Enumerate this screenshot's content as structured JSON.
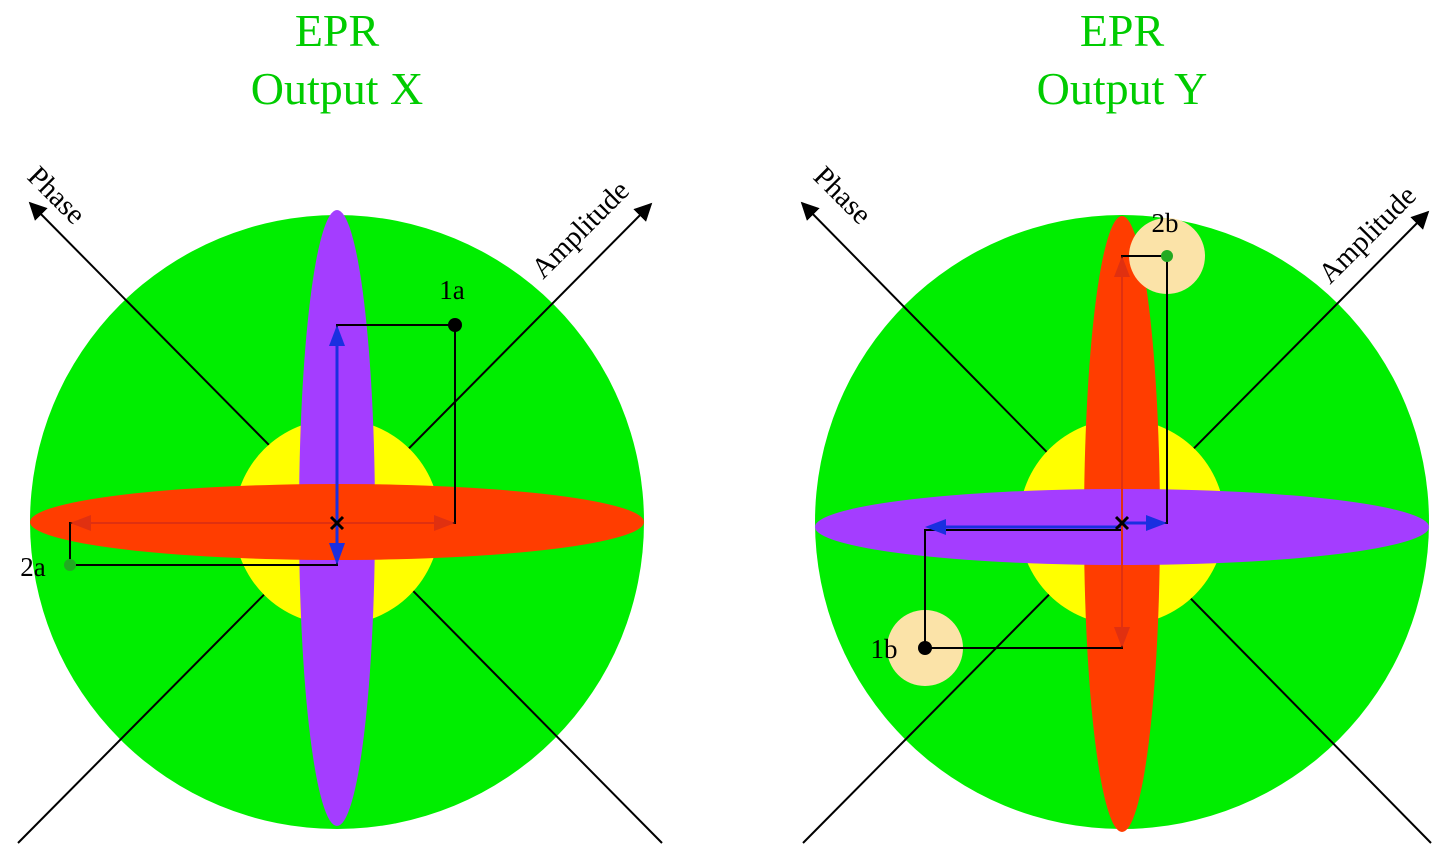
{
  "colors": {
    "sphere": "#00ee00",
    "core": "#ffff00",
    "red_ellipse": "#ff3d00",
    "purple_ellipse": "#a43dff",
    "halo": "#fbe3a8",
    "title": "#00cc00",
    "arrow_red": "#e03010",
    "arrow_blue": "#1a2fe0",
    "point_green": "#22aa22",
    "ink": "#000000"
  },
  "panel_x": {
    "title_line1": "EPR",
    "title_line2": "Output X",
    "axis_phase": "Phase",
    "axis_amplitude": "Amplitude",
    "label_1": "1a",
    "label_2": "2a"
  },
  "panel_y": {
    "title_line1": "EPR",
    "title_line2": "Output Y",
    "axis_phase": "Phase",
    "axis_amplitude": "Amplitude",
    "label_1": "1b",
    "label_2": "2b"
  }
}
